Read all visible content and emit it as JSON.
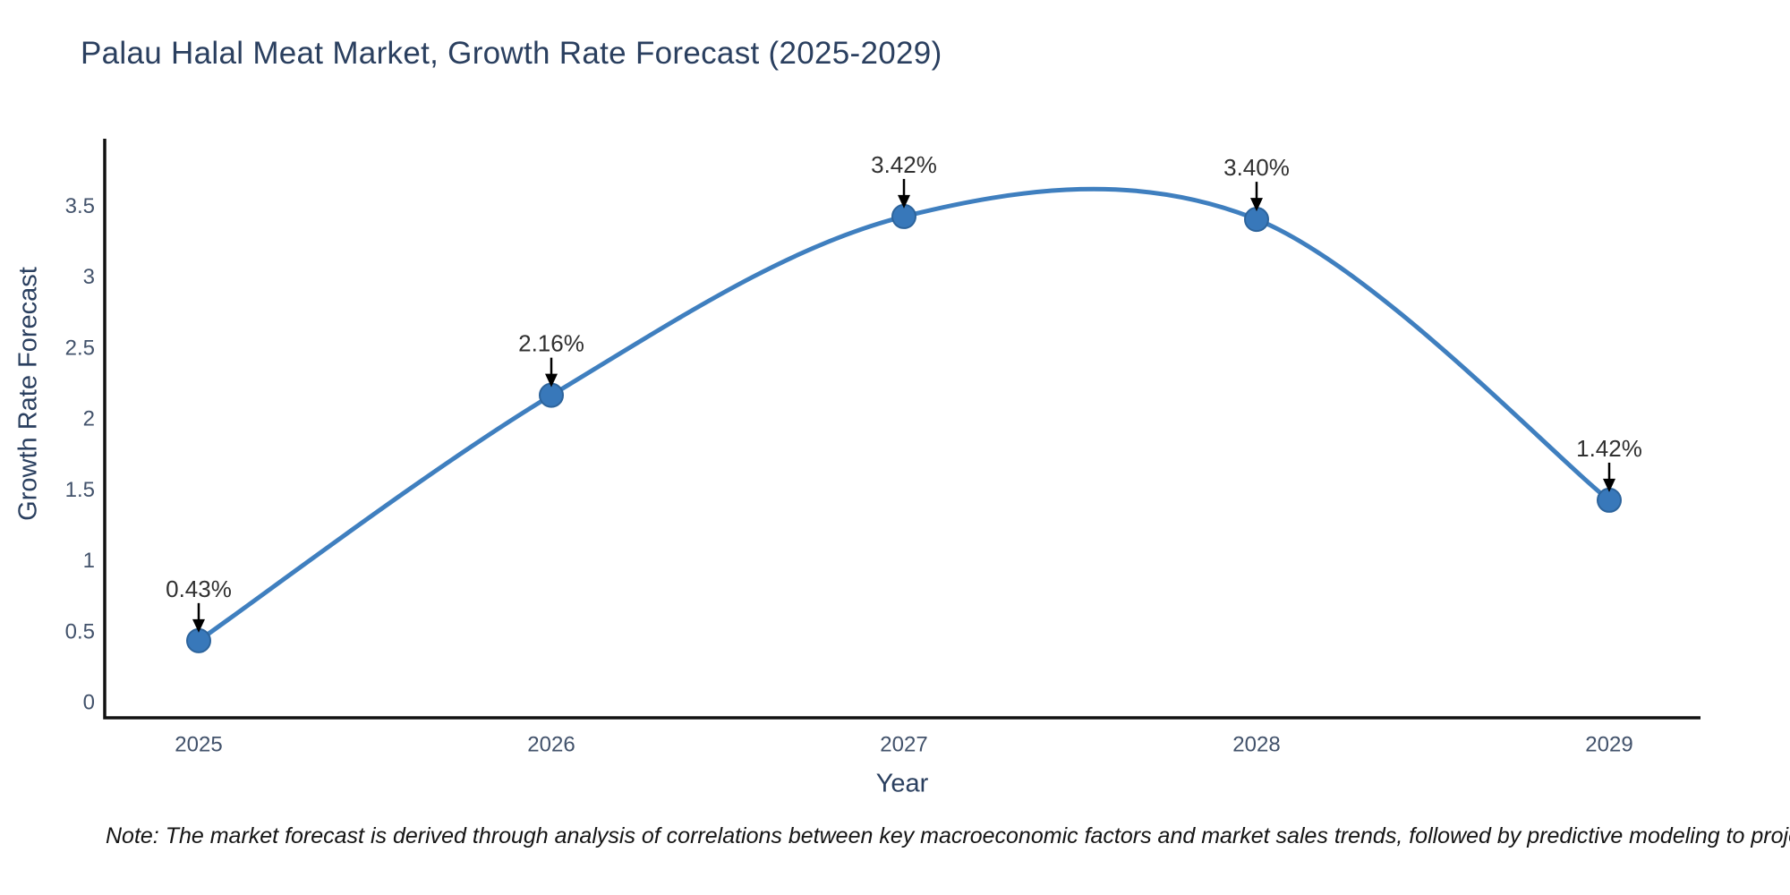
{
  "chart_data": {
    "type": "line",
    "line_shape": "spline",
    "title": "Palau Halal Meat Market, Growth Rate Forecast (2025-2029)",
    "xlabel": "Year",
    "ylabel": "Growth Rate Forecast",
    "x": [
      2025,
      2026,
      2027,
      2028,
      2029
    ],
    "values": [
      0.43,
      2.16,
      3.42,
      3.4,
      1.42
    ],
    "point_labels": [
      "0.43%",
      "2.16%",
      "3.42%",
      "3.40%",
      "1.42%"
    ],
    "yticks": [
      0,
      0.5,
      1,
      1.5,
      2,
      2.5,
      3,
      3.5
    ],
    "ylim": [
      -0.11,
      3.97
    ],
    "grid": false,
    "legend": "none",
    "annotation_style": "arrow-down-to-point",
    "note": "Note: The market forecast is derived through analysis of correlations between key macroeconomic factors and market sales trends, followed by predictive modeling to project future sales",
    "colors": {
      "line": "#3f7fbf",
      "marker": "#3878ba",
      "marker_edge": "#2d649c",
      "axis": "#111111",
      "title_text": "#2a3f5f",
      "tick_text": "#42526b",
      "annotation_text": "#303030",
      "arrow": "#000000",
      "background": "#ffffff"
    }
  }
}
